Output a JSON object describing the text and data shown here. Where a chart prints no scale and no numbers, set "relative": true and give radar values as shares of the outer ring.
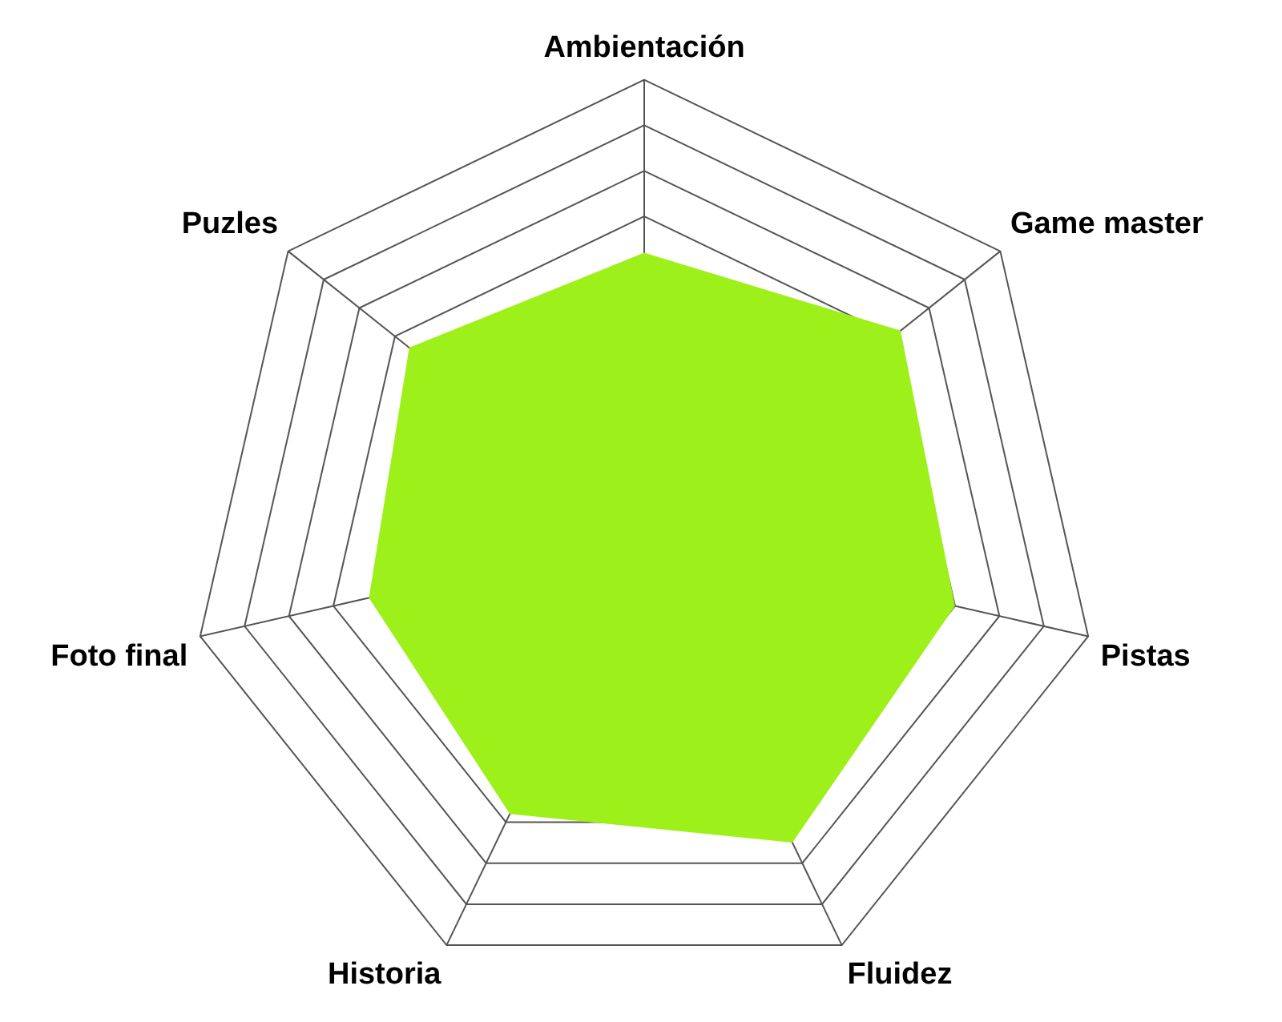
{
  "chart_data": {
    "type": "radar",
    "relative": true,
    "categories": [
      "Ambientación",
      "Game master",
      "Pistas",
      "Fluidez",
      "Historia",
      "Foto final",
      "Puzles"
    ],
    "series": [
      {
        "color": "#9ef01a",
        "values": [
          0.62,
          0.72,
          0.7,
          0.75,
          0.68,
          0.62,
          0.66
        ]
      }
    ],
    "grid": true,
    "legend": false,
    "marker": "none"
  }
}
